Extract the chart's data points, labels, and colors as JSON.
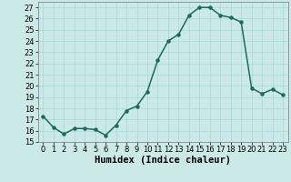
{
  "x": [
    0,
    1,
    2,
    3,
    4,
    5,
    6,
    7,
    8,
    9,
    10,
    11,
    12,
    13,
    14,
    15,
    16,
    17,
    18,
    19,
    20,
    21,
    22,
    23
  ],
  "y": [
    17.3,
    16.3,
    15.7,
    16.2,
    16.2,
    16.1,
    15.6,
    16.5,
    17.8,
    18.2,
    19.5,
    22.3,
    24.0,
    24.6,
    26.3,
    27.0,
    27.0,
    26.3,
    26.1,
    25.7,
    19.8,
    19.3,
    19.7,
    19.2
  ],
  "line_color": "#1a6b5a",
  "marker": "o",
  "marker_size": 2.2,
  "bg_color": "#cce9ea",
  "grid_color": "#a8d8d8",
  "xlabel": "Humidex (Indice chaleur)",
  "xlim": [
    -0.5,
    23.5
  ],
  "ylim": [
    15,
    27.5
  ],
  "yticks": [
    15,
    16,
    17,
    18,
    19,
    20,
    21,
    22,
    23,
    24,
    25,
    26,
    27
  ],
  "xticks": [
    0,
    1,
    2,
    3,
    4,
    5,
    6,
    7,
    8,
    9,
    10,
    11,
    12,
    13,
    14,
    15,
    16,
    17,
    18,
    19,
    20,
    21,
    22,
    23
  ],
  "xlabel_fontsize": 7.5,
  "tick_fontsize": 6.0,
  "linewidth": 1.1
}
